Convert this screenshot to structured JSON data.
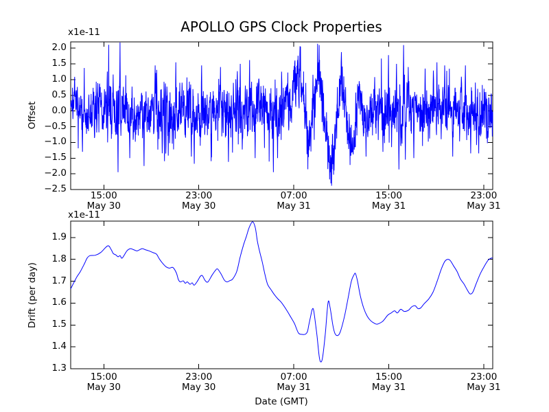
{
  "figure": {
    "background": "#ffffff",
    "text_color": "#000000"
  },
  "chart_data": [
    {
      "type": "line",
      "title": "APOLLO GPS Clock Properties",
      "ylabel": "Offset",
      "y_scale_label": "x1e-11",
      "line_color": "#0000ff",
      "ylim": [
        -2.5,
        2.2
      ],
      "yticks": [
        2.0,
        1.5,
        1.0,
        0.5,
        0.0,
        -0.5,
        -1.0,
        -1.5,
        -2.0,
        -2.5
      ],
      "grid": false,
      "legend": null,
      "xticks": [
        {
          "frac": 0.0785,
          "time": "15:00",
          "date": "May 30"
        },
        {
          "frac": 0.3036,
          "time": "23:00",
          "date": "May 30"
        },
        {
          "frac": 0.5286,
          "time": "07:00",
          "date": "May 31"
        },
        {
          "frac": 0.7537,
          "time": "15:00",
          "date": "May 31"
        },
        {
          "frac": 0.9787,
          "time": "23:00",
          "date": "May 31"
        }
      ],
      "series": [
        {
          "name": "offset",
          "style": "noisy",
          "n_points": 1900,
          "seed": 7,
          "baseline": [
            [
              0,
              0.35
            ],
            [
              0.012,
              0.3
            ],
            [
              0.03,
              -0.2
            ],
            [
              0.045,
              -0.1
            ],
            [
              0.06,
              0.1
            ],
            [
              0.08,
              0
            ],
            [
              0.1,
              0.15
            ],
            [
              0.118,
              0
            ],
            [
              0.14,
              -0.1
            ],
            [
              0.17,
              0
            ],
            [
              0.22,
              0.05
            ],
            [
              0.25,
              -0.05
            ],
            [
              0.3,
              0
            ],
            [
              0.36,
              -0.05
            ],
            [
              0.42,
              0.05
            ],
            [
              0.47,
              0
            ],
            [
              0.51,
              0.18
            ],
            [
              0.5447,
              1.3
            ],
            [
              0.5642,
              -1.0
            ],
            [
              0.5886,
              1.45
            ],
            [
              0.6163,
              -2.0
            ],
            [
              0.6407,
              1.05
            ],
            [
              0.665,
              -1.3
            ],
            [
              0.6829,
              0.5
            ],
            [
              0.6976,
              -0.45
            ],
            [
              0.715,
              0
            ],
            [
              0.76,
              0.05
            ],
            [
              0.82,
              -0.05
            ],
            [
              0.88,
              0.05
            ],
            [
              0.94,
              -0.05
            ],
            [
              1,
              0
            ]
          ],
          "noise_amplitude": [
            [
              0,
              0.26
            ],
            [
              0.03,
              0.3
            ],
            [
              0.08,
              0.4
            ],
            [
              0.105,
              0.5
            ],
            [
              0.118,
              0.55
            ],
            [
              0.13,
              0.4
            ],
            [
              0.165,
              0.38
            ],
            [
              0.19,
              0.42
            ],
            [
              0.215,
              0.5
            ],
            [
              0.235,
              0.52
            ],
            [
              0.255,
              0.4
            ],
            [
              0.285,
              0.44
            ],
            [
              0.315,
              0.42
            ],
            [
              0.345,
              0.46
            ],
            [
              0.37,
              0.42
            ],
            [
              0.4,
              0.46
            ],
            [
              0.43,
              0.4
            ],
            [
              0.46,
              0.42
            ],
            [
              0.5,
              0.4
            ],
            [
              0.545,
              0.42
            ],
            [
              0.59,
              0.45
            ],
            [
              0.616,
              0.4
            ],
            [
              0.65,
              0.4
            ],
            [
              0.7,
              0.38
            ],
            [
              0.728,
              0.44
            ],
            [
              0.744,
              0.5
            ],
            [
              0.76,
              0.42
            ],
            [
              0.78,
              0.5
            ],
            [
              0.8,
              0.4
            ],
            [
              0.83,
              0.38
            ],
            [
              0.862,
              0.44
            ],
            [
              0.89,
              0.42
            ],
            [
              0.92,
              0.4
            ],
            [
              0.95,
              0.38
            ],
            [
              0.975,
              0.42
            ],
            [
              1,
              0.38
            ]
          ],
          "spikes": [
            [
              0.028,
              -1.3
            ],
            [
              0.112,
              -1.95
            ],
            [
              0.117,
              2.18
            ],
            [
              0.14,
              -1.5
            ],
            [
              0.174,
              -1.75
            ],
            [
              0.2,
              1.45
            ],
            [
              0.222,
              -1.6
            ],
            [
              0.249,
              1.55
            ],
            [
              0.286,
              -1.45
            ],
            [
              0.293,
              -1.68
            ],
            [
              0.31,
              1.45
            ],
            [
              0.333,
              -1.6
            ],
            [
              0.355,
              1.4
            ],
            [
              0.374,
              -1.62
            ],
            [
              0.402,
              1.5
            ],
            [
              0.424,
              1.62
            ],
            [
              0.437,
              -1.5
            ],
            [
              0.48,
              -1.95
            ],
            [
              0.49,
              -1.5
            ],
            [
              0.5447,
              2.05
            ],
            [
              0.5886,
              2.1
            ],
            [
              0.618,
              -2.38
            ],
            [
              0.7,
              -1.45
            ],
            [
              0.74,
              -1.3
            ],
            [
              0.753,
              1.78
            ],
            [
              0.772,
              1.5
            ],
            [
              0.778,
              -1.86
            ],
            [
              0.789,
              2.1
            ],
            [
              0.793,
              -1.55
            ],
            [
              0.8,
              1.4
            ],
            [
              0.813,
              -1.5
            ],
            [
              0.84,
              1.35
            ],
            [
              0.868,
              1.55
            ],
            [
              0.886,
              1.45
            ],
            [
              0.905,
              -1.45
            ],
            [
              0.935,
              1.45
            ],
            [
              0.948,
              -1.35
            ],
            [
              0.967,
              -1.35
            ]
          ]
        }
      ]
    },
    {
      "type": "line",
      "ylabel": "Drift (per day)",
      "xlabel": "Date (GMT)",
      "y_scale_label": "x1e-11",
      "line_color": "#0000ff",
      "ylim": [
        1.3,
        1.975
      ],
      "yticks": [
        1.9,
        1.8,
        1.7,
        1.6,
        1.5,
        1.4,
        1.3
      ],
      "grid": false,
      "legend": null,
      "xticks": [
        {
          "frac": 0.0785,
          "time": "15:00",
          "date": "May 30"
        },
        {
          "frac": 0.3036,
          "time": "23:00",
          "date": "May 30"
        },
        {
          "frac": 0.5286,
          "time": "07:00",
          "date": "May 31"
        },
        {
          "frac": 0.7537,
          "time": "15:00",
          "date": "May 31"
        },
        {
          "frac": 0.9787,
          "time": "23:00",
          "date": "May 31"
        }
      ],
      "series": [
        {
          "name": "drift",
          "points": [
            [
              0,
              1.665
            ],
            [
              0.0065,
              1.69
            ],
            [
              0.0146,
              1.72
            ],
            [
              0.0228,
              1.744
            ],
            [
              0.0325,
              1.78
            ],
            [
              0.039,
              1.806
            ],
            [
              0.0455,
              1.817
            ],
            [
              0.0585,
              1.819
            ],
            [
              0.0715,
              1.832
            ],
            [
              0.0878,
              1.862
            ],
            [
              0.0959,
              1.845
            ],
            [
              0.1008,
              1.827
            ],
            [
              0.1073,
              1.82
            ],
            [
              0.1122,
              1.812
            ],
            [
              0.1171,
              1.817
            ],
            [
              0.122,
              1.806
            ],
            [
              0.1333,
              1.839
            ],
            [
              0.1415,
              1.849
            ],
            [
              0.1496,
              1.844
            ],
            [
              0.1577,
              1.839
            ],
            [
              0.1691,
              1.849
            ],
            [
              0.1772,
              1.844
            ],
            [
              0.1854,
              1.839
            ],
            [
              0.1951,
              1.831
            ],
            [
              0.2033,
              1.824
            ],
            [
              0.2098,
              1.803
            ],
            [
              0.2179,
              1.782
            ],
            [
              0.226,
              1.766
            ],
            [
              0.2341,
              1.76
            ],
            [
              0.2423,
              1.763
            ],
            [
              0.2504,
              1.738
            ],
            [
              0.2553,
              1.707
            ],
            [
              0.2602,
              1.697
            ],
            [
              0.2667,
              1.702
            ],
            [
              0.2715,
              1.691
            ],
            [
              0.2764,
              1.697
            ],
            [
              0.2829,
              1.686
            ],
            [
              0.2878,
              1.693
            ],
            [
              0.2927,
              1.682
            ],
            [
              0.3008,
              1.702
            ],
            [
              0.3073,
              1.723
            ],
            [
              0.3122,
              1.725
            ],
            [
              0.3187,
              1.703
            ],
            [
              0.3252,
              1.697
            ],
            [
              0.335,
              1.728
            ],
            [
              0.3431,
              1.75
            ],
            [
              0.348,
              1.756
            ],
            [
              0.3561,
              1.734
            ],
            [
              0.3642,
              1.705
            ],
            [
              0.3707,
              1.697
            ],
            [
              0.3772,
              1.703
            ],
            [
              0.3837,
              1.71
            ],
            [
              0.3935,
              1.745
            ],
            [
              0.4016,
              1.811
            ],
            [
              0.4098,
              1.868
            ],
            [
              0.4163,
              1.905
            ],
            [
              0.4228,
              1.945
            ],
            [
              0.4309,
              1.972
            ],
            [
              0.4374,
              1.945
            ],
            [
              0.4423,
              1.884
            ],
            [
              0.4472,
              1.84
            ],
            [
              0.4537,
              1.79
            ],
            [
              0.4602,
              1.732
            ],
            [
              0.4667,
              1.685
            ],
            [
              0.4748,
              1.661
            ],
            [
              0.4829,
              1.638
            ],
            [
              0.4911,
              1.619
            ],
            [
              0.4992,
              1.603
            ],
            [
              0.512,
              1.567
            ],
            [
              0.5203,
              1.54
            ],
            [
              0.5285,
              1.513
            ],
            [
              0.5317,
              1.5
            ],
            [
              0.5398,
              1.463
            ],
            [
              0.548,
              1.457
            ],
            [
              0.5561,
              1.458
            ],
            [
              0.561,
              1.47
            ],
            [
              0.5642,
              1.5
            ],
            [
              0.5691,
              1.545
            ],
            [
              0.5724,
              1.572
            ],
            [
              0.5756,
              1.568
            ],
            [
              0.5805,
              1.5
            ],
            [
              0.5837,
              1.45
            ],
            [
              0.5886,
              1.36
            ],
            [
              0.5919,
              1.332
            ],
            [
              0.5967,
              1.35
            ],
            [
              0.6033,
              1.46
            ],
            [
              0.6098,
              1.603
            ],
            [
              0.6146,
              1.58
            ],
            [
              0.6211,
              1.5
            ],
            [
              0.626,
              1.462
            ],
            [
              0.6325,
              1.452
            ],
            [
              0.639,
              1.47
            ],
            [
              0.6488,
              1.54
            ],
            [
              0.657,
              1.62
            ],
            [
              0.665,
              1.7
            ],
            [
              0.6715,
              1.73
            ],
            [
              0.6748,
              1.735
            ],
            [
              0.6797,
              1.7
            ],
            [
              0.6862,
              1.634
            ],
            [
              0.6943,
              1.577
            ],
            [
              0.7024,
              1.541
            ],
            [
              0.7106,
              1.52
            ],
            [
              0.7203,
              1.507
            ],
            [
              0.7268,
              1.504
            ],
            [
              0.7382,
              1.515
            ],
            [
              0.7431,
              1.525
            ],
            [
              0.7512,
              1.545
            ],
            [
              0.7593,
              1.555
            ],
            [
              0.7675,
              1.565
            ],
            [
              0.774,
              1.555
            ],
            [
              0.7821,
              1.572
            ],
            [
              0.7902,
              1.562
            ],
            [
              0.8,
              1.567
            ],
            [
              0.8081,
              1.583
            ],
            [
              0.8163,
              1.588
            ],
            [
              0.8228,
              1.575
            ],
            [
              0.8293,
              1.578
            ],
            [
              0.8374,
              1.597
            ],
            [
              0.8488,
              1.62
            ],
            [
              0.8585,
              1.65
            ],
            [
              0.8683,
              1.7
            ],
            [
              0.878,
              1.755
            ],
            [
              0.8862,
              1.79
            ],
            [
              0.8927,
              1.8
            ],
            [
              0.8992,
              1.795
            ],
            [
              0.9073,
              1.77
            ],
            [
              0.9154,
              1.745
            ],
            [
              0.9236,
              1.71
            ],
            [
              0.9317,
              1.688
            ],
            [
              0.9398,
              1.66
            ],
            [
              0.9463,
              1.642
            ],
            [
              0.9528,
              1.65
            ],
            [
              0.961,
              1.69
            ],
            [
              0.9707,
              1.735
            ],
            [
              0.9805,
              1.77
            ],
            [
              0.9886,
              1.795
            ],
            [
              0.9951,
              1.805
            ],
            [
              1,
              1.806
            ]
          ]
        }
      ]
    }
  ]
}
